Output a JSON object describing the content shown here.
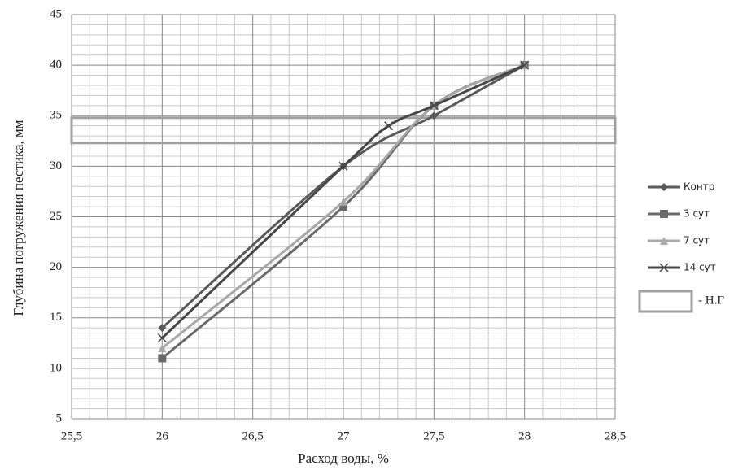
{
  "chart_data": {
    "type": "line",
    "x_label": "Расход воды, %",
    "y_label": "Глубина погружения пестика, мм",
    "xlim": [
      25.5,
      28.5
    ],
    "xticks": [
      {
        "value": 25.5,
        "label": "25,5"
      },
      26,
      {
        "value": 26.5,
        "label": "26,5"
      },
      27,
      {
        "value": 27.5,
        "label": "27,5"
      },
      28,
      {
        "value": 28.5,
        "label": "28,5"
      }
    ],
    "ylim": [
      5,
      45
    ],
    "yticks": [
      5,
      10,
      15,
      20,
      25,
      30,
      35,
      40,
      45
    ],
    "grid": true,
    "legend": "right",
    "series": [
      {
        "name": "Контр",
        "color": "#5a5a5a",
        "marker": "diamond",
        "x": [
          26,
          27,
          27.5,
          28
        ],
        "values": [
          14,
          30,
          35,
          40
        ]
      },
      {
        "name": "3 сут",
        "color": "#6a6a6a",
        "marker": "square",
        "x": [
          26,
          27,
          27.5,
          28
        ],
        "values": [
          11,
          26,
          36,
          40
        ]
      },
      {
        "name": "7 сут",
        "color": "#a8a8a8",
        "marker": "triangle",
        "x": [
          26,
          27,
          27.5,
          28
        ],
        "values": [
          12,
          26.5,
          36,
          40
        ]
      },
      {
        "name": "14 сут",
        "color": "#474747",
        "marker": "x",
        "x": [
          26,
          27,
          27.25,
          27.5,
          28
        ],
        "values": [
          13,
          30,
          34,
          36,
          40
        ]
      }
    ],
    "band": {
      "label": "- Н.Г",
      "color": "#a0a0a0",
      "ylim": [
        32.3,
        34.8
      ]
    }
  }
}
